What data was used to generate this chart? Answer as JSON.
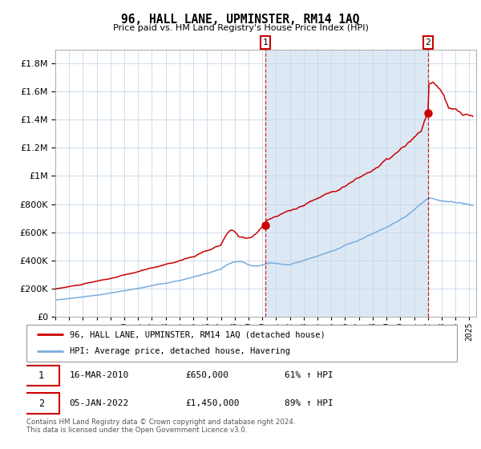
{
  "title": "96, HALL LANE, UPMINSTER, RM14 1AQ",
  "subtitle": "Price paid vs. HM Land Registry's House Price Index (HPI)",
  "footer": "Contains HM Land Registry data © Crown copyright and database right 2024.\nThis data is licensed under the Open Government Licence v3.0.",
  "legend_line1": "96, HALL LANE, UPMINSTER, RM14 1AQ (detached house)",
  "legend_line2": "HPI: Average price, detached house, Havering",
  "sale1_date": "16-MAR-2010",
  "sale1_price": "£650,000",
  "sale1_hpi": "61% ↑ HPI",
  "sale2_date": "05-JAN-2022",
  "sale2_price": "£1,450,000",
  "sale2_hpi": "89% ↑ HPI",
  "red_color": "#cc0000",
  "blue_color": "#7aacdc",
  "shade_color": "#dce9f5",
  "plot_bg": "#ffffff",
  "grid_color": "#c8d8e8",
  "sale1_x": 2010.21,
  "sale1_y": 650000,
  "sale2_x": 2022.01,
  "sale2_y": 1450000,
  "xmin": 1995.0,
  "xmax": 2025.5,
  "ymin": 0,
  "ymax": 1900000,
  "yticks": [
    0,
    200000,
    400000,
    600000,
    800000,
    1000000,
    1200000,
    1400000,
    1600000,
    1800000
  ]
}
